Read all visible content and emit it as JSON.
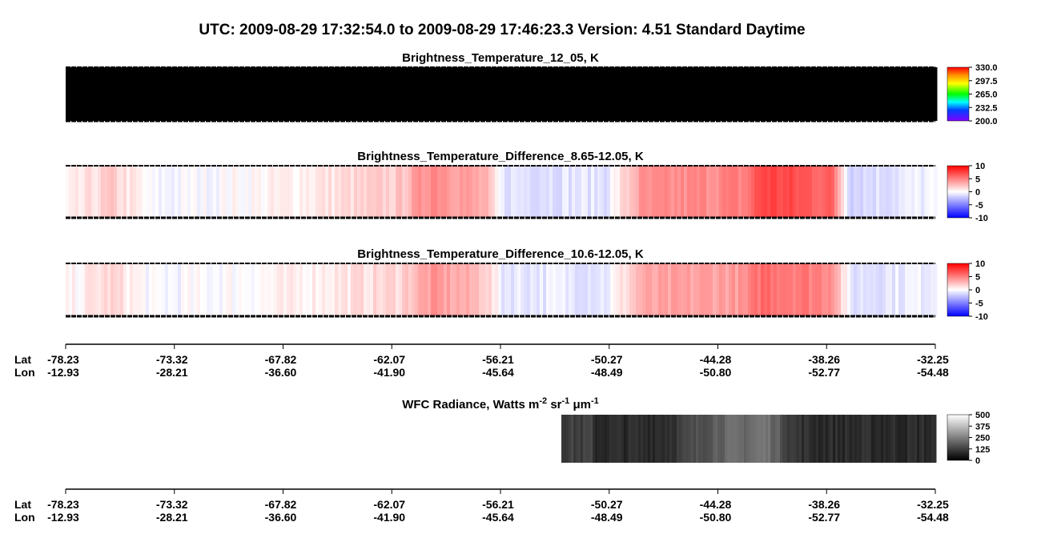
{
  "title": "UTC:  2009-08-29   17:32:54.0  to  2009-08-29   17:46:23.3    Version: 4.51  Standard Daytime",
  "panels": [
    {
      "title": "Brightness_Temperature_12_05, K",
      "colorbar_ticks": [
        "330.0",
        "297.5",
        "265.0",
        "232.5",
        "200.0"
      ]
    },
    {
      "title": "Brightness_Temperature_Difference_8.65-12.05, K",
      "colorbar_ticks": [
        "10",
        "5",
        "0",
        "-5",
        "-10"
      ]
    },
    {
      "title": "Brightness_Temperature_Difference_10.6-12.05, K",
      "colorbar_ticks": [
        "10",
        "5",
        "0",
        "-5",
        "-10"
      ]
    }
  ],
  "axis": {
    "lat_label": "Lat",
    "lon_label": "Lon",
    "lat": [
      "-78.23",
      "-73.32",
      "-67.82",
      "-62.07",
      "-56.21",
      "-50.27",
      "-44.28",
      "-38.26",
      "-32.25"
    ],
    "lon": [
      "-12.93",
      "-28.21",
      "-36.60",
      "-41.90",
      "-45.64",
      "-48.49",
      "-50.80",
      "-52.77",
      "-54.48"
    ]
  },
  "wfc": {
    "title_parts": [
      "WFC Radiance, Watts m",
      "-2",
      " sr",
      "-1",
      " μm",
      "-1"
    ],
    "colorbar_ticks": [
      "500",
      "375",
      "250",
      "125",
      "0"
    ]
  }
}
